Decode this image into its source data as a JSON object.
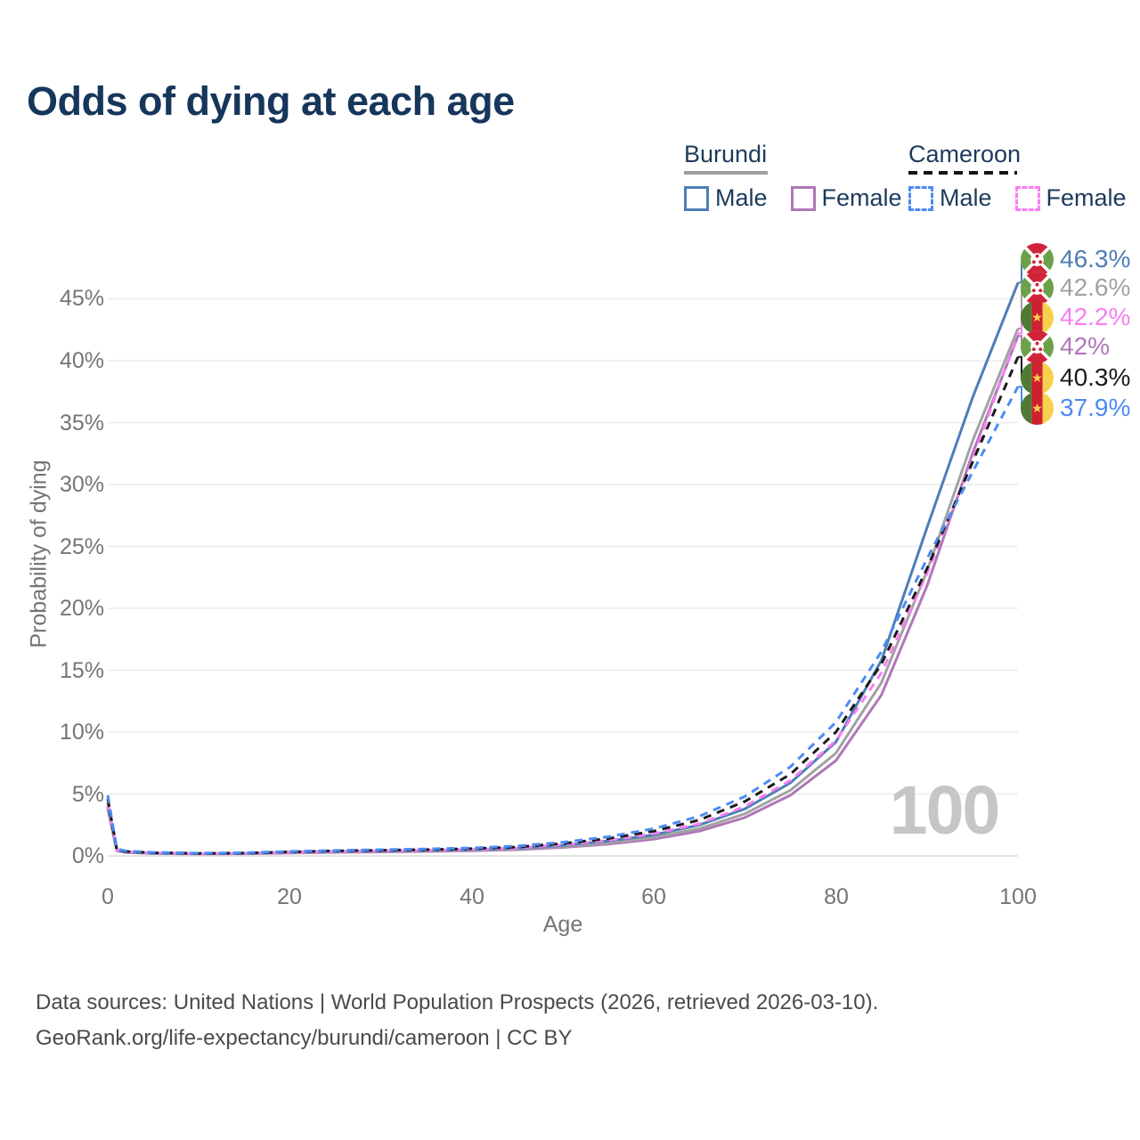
{
  "title": "Odds of dying at each age",
  "legend": {
    "groups": [
      {
        "title": "Burundi",
        "line_style": "solid",
        "underline_color": "#9e9e9e",
        "items": [
          {
            "label": "Male",
            "color": "#4d7eb5"
          },
          {
            "label": "Female",
            "color": "#b077b8"
          }
        ]
      },
      {
        "title": "Cameroon",
        "line_style": "dashed",
        "underline_color": "#151515",
        "items": [
          {
            "label": "Male",
            "color": "#4c8bf4"
          },
          {
            "label": "Female",
            "color": "#f97ef2"
          }
        ]
      }
    ]
  },
  "watermark": "100",
  "footer": {
    "line1": "Data sources: United Nations | World Population Prospects (2026, retrieved 2026-03-10).",
    "line2": "GeoRank.org/life-expectancy/burundi/cameroon | CC BY"
  },
  "chart_data": {
    "type": "line",
    "title": "Odds of dying at each age",
    "xlabel": "Age",
    "ylabel": "Probability of dying",
    "xlim": [
      0,
      100
    ],
    "ylim_pct": [
      0,
      48
    ],
    "grid": "horizontal",
    "legend_position": "top-right",
    "x_tick_labels": [
      "0",
      "20",
      "40",
      "60",
      "80",
      "100"
    ],
    "x_tick_values": [
      0,
      20,
      40,
      60,
      80,
      100
    ],
    "y_tick_labels": [
      "45%",
      "40%",
      "35%",
      "30%",
      "25%",
      "20%",
      "15%",
      "10%",
      "5%",
      "0%"
    ],
    "y_tick_values": [
      45,
      40,
      35,
      30,
      25,
      20,
      15,
      10,
      5,
      0
    ],
    "ages": [
      0,
      1,
      2,
      5,
      10,
      15,
      20,
      25,
      30,
      35,
      40,
      45,
      50,
      55,
      60,
      65,
      70,
      75,
      80,
      85,
      90,
      95,
      100
    ],
    "series": [
      {
        "name": "Burundi Male",
        "country": "Burundi",
        "sex": "Male",
        "line_style": "solid",
        "color": "#4d7eb5",
        "end_label": "46.3%",
        "end_value_pct": 46.3,
        "values_pct": [
          4.2,
          0.45,
          0.32,
          0.22,
          0.18,
          0.2,
          0.3,
          0.36,
          0.4,
          0.44,
          0.5,
          0.62,
          0.85,
          1.2,
          1.7,
          2.5,
          3.8,
          5.9,
          9.2,
          15.8,
          26.5,
          37.0,
          46.3
        ]
      },
      {
        "name": "Burundi Both sexes",
        "country": "Burundi",
        "sex": "Both",
        "line_style": "solid",
        "color": "#a2a2a2",
        "end_label": "42.6%",
        "end_value_pct": 42.6,
        "values_pct": [
          4.0,
          0.42,
          0.3,
          0.2,
          0.17,
          0.18,
          0.27,
          0.32,
          0.36,
          0.4,
          0.46,
          0.56,
          0.75,
          1.05,
          1.5,
          2.2,
          3.4,
          5.3,
          8.3,
          14.0,
          23.0,
          33.5,
          42.6
        ]
      },
      {
        "name": "Cameroon Female",
        "country": "Cameroon",
        "sex": "Female",
        "line_style": "dashed",
        "color": "#f97ef2",
        "end_label": "42.2%",
        "end_value_pct": 42.2,
        "values_pct": [
          4.3,
          0.46,
          0.33,
          0.23,
          0.18,
          0.2,
          0.28,
          0.35,
          0.4,
          0.45,
          0.52,
          0.64,
          0.9,
          1.25,
          1.8,
          2.6,
          4.0,
          6.1,
          9.3,
          14.8,
          22.8,
          32.0,
          42.2
        ]
      },
      {
        "name": "Burundi Female",
        "country": "Burundi",
        "sex": "Female",
        "line_style": "solid",
        "color": "#b077b8",
        "end_label": "42%",
        "end_value_pct": 42.0,
        "values_pct": [
          3.8,
          0.4,
          0.28,
          0.19,
          0.16,
          0.17,
          0.24,
          0.28,
          0.32,
          0.36,
          0.42,
          0.5,
          0.68,
          0.95,
          1.35,
          2.0,
          3.1,
          4.9,
          7.7,
          13.0,
          21.8,
          32.5,
          42.0
        ]
      },
      {
        "name": "Cameroon Both sexes",
        "country": "Cameroon",
        "sex": "Both",
        "line_style": "dashed",
        "color": "#1b1b1b",
        "end_label": "40.3%",
        "end_value_pct": 40.3,
        "values_pct": [
          4.6,
          0.5,
          0.36,
          0.25,
          0.2,
          0.22,
          0.32,
          0.4,
          0.45,
          0.5,
          0.58,
          0.72,
          1.0,
          1.4,
          2.0,
          2.9,
          4.4,
          6.6,
          10.0,
          15.5,
          23.2,
          31.8,
          40.3
        ]
      },
      {
        "name": "Cameroon Male",
        "country": "Cameroon",
        "sex": "Male",
        "line_style": "dashed",
        "color": "#4c8bf4",
        "end_label": "37.9%",
        "end_value_pct": 37.9,
        "values_pct": [
          4.9,
          0.55,
          0.4,
          0.28,
          0.22,
          0.25,
          0.36,
          0.44,
          0.5,
          0.56,
          0.64,
          0.8,
          1.1,
          1.55,
          2.2,
          3.2,
          4.8,
          7.2,
          10.8,
          16.5,
          24.0,
          31.0,
          37.9
        ]
      }
    ]
  }
}
